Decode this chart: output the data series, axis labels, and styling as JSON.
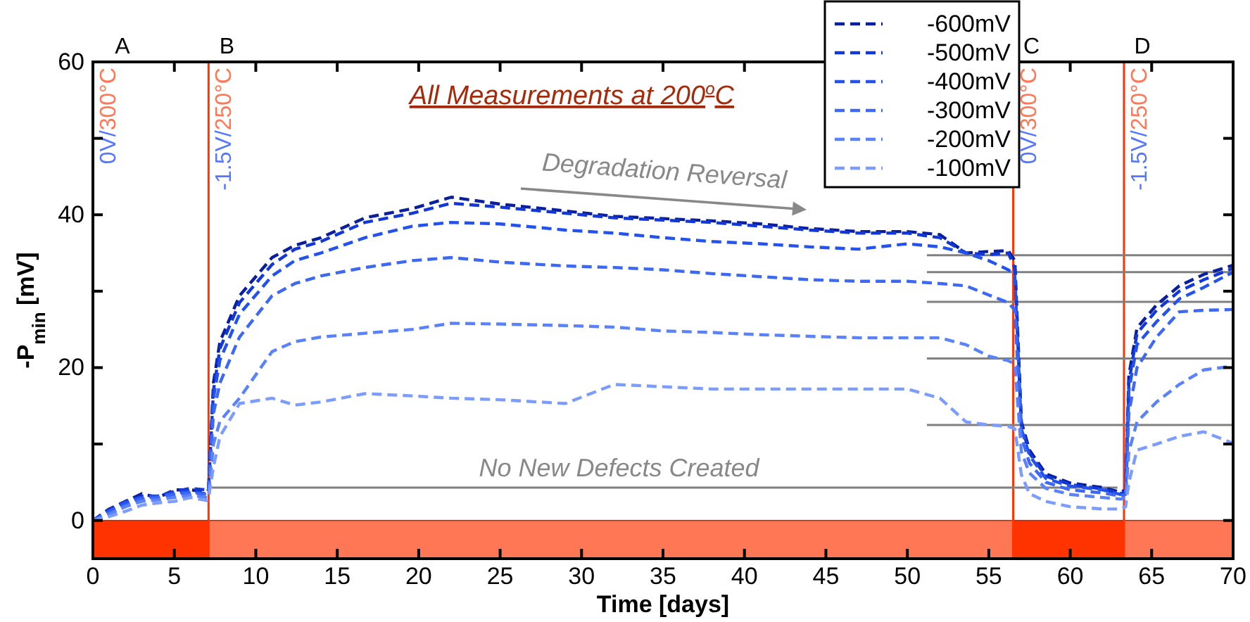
{
  "chart_data": {
    "type": "line",
    "xlabel": "Time  [days]",
    "ylabel": "-P$_{min}$  [mV]",
    "xlim": [
      0,
      70
    ],
    "ylim": [
      -5,
      60
    ],
    "xticks": [
      0,
      5,
      10,
      15,
      20,
      25,
      30,
      35,
      40,
      45,
      50,
      55,
      60,
      65,
      70
    ],
    "yticks": [
      0,
      {
        "value": 10,
        "label": null
      },
      20,
      {
        "value": 30,
        "label": null
      },
      40,
      {
        "value": 50,
        "label": null
      },
      60
    ],
    "x": [
      0,
      1,
      2,
      3,
      4,
      5,
      6,
      7,
      7.1,
      7.4,
      7.8,
      9,
      11,
      12.4,
      14,
      16.7,
      19.6,
      22,
      25,
      29,
      32,
      35,
      38,
      41,
      44,
      47,
      50,
      52,
      53.6,
      55,
      56.2,
      56.6,
      57,
      57.5,
      58.5,
      60,
      62,
      63.1,
      63.4,
      63.6,
      64.1,
      65.3,
      66.7,
      68.2,
      70
    ],
    "line_style": "dashed",
    "legend": "top right",
    "grid": false,
    "series": [
      {
        "name": "-600mV",
        "color": "#0a1f9e",
        "values": [
          0,
          1.5,
          2.5,
          3.5,
          3,
          4,
          4,
          3.8,
          4,
          18,
          23.4,
          29.4,
          34.4,
          36,
          37,
          39.6,
          40.8,
          42.3,
          41.4,
          40.5,
          39.8,
          39.5,
          39.2,
          38.8,
          38.2,
          37.8,
          37.8,
          37.4,
          35,
          35.2,
          35.3,
          34,
          12.9,
          9.2,
          6.1,
          4.9,
          4.3,
          3.7,
          4,
          19,
          25.2,
          28.2,
          30.7,
          32.2,
          33.4
        ]
      },
      {
        "name": "-500mV",
        "color": "#1238d8",
        "values": [
          0,
          1.2,
          2.3,
          3.2,
          3.2,
          3.8,
          4.2,
          4,
          4.2,
          17,
          22.5,
          28.5,
          33.5,
          35.5,
          36.5,
          39,
          40.2,
          41.5,
          41,
          40.2,
          39.6,
          39.3,
          39,
          38.5,
          38,
          37.6,
          37.6,
          37,
          35,
          34.8,
          35,
          33,
          12.5,
          8.8,
          5.8,
          4.7,
          4.1,
          3.5,
          3.8,
          18,
          24.5,
          27.5,
          30,
          31.5,
          33
        ]
      },
      {
        "name": "-400mV",
        "color": "#2452ee",
        "values": [
          0,
          1.3,
          2.4,
          3,
          3.2,
          3.6,
          3.8,
          3.5,
          3.8,
          16,
          21,
          27,
          32,
          34,
          35,
          37,
          38.5,
          39,
          38.8,
          38,
          37.6,
          37,
          36.5,
          36.2,
          35.8,
          35.5,
          36.2,
          35.8,
          35,
          34,
          32.8,
          32,
          12,
          8.5,
          5.5,
          4.5,
          4,
          3.4,
          3.6,
          17,
          23,
          26,
          29,
          30.5,
          32.5
        ]
      },
      {
        "name": "-300mV",
        "color": "#3d68f5",
        "values": [
          0,
          1,
          2,
          2.8,
          3,
          3.4,
          3.6,
          3.4,
          3.6,
          14,
          18,
          24,
          29.4,
          31,
          32,
          33.1,
          34,
          34.4,
          33.8,
          33.3,
          33.1,
          32.8,
          32.3,
          31.9,
          31.5,
          31.3,
          31.3,
          31,
          30.7,
          29.5,
          28.5,
          27.5,
          11,
          7.5,
          5,
          4,
          3.6,
          3.2,
          3.4,
          14,
          20,
          24,
          27.3,
          27.5,
          27.6
        ]
      },
      {
        "name": "-200mV",
        "color": "#5a82fb",
        "values": [
          0,
          0.8,
          1.8,
          2.5,
          2.7,
          3,
          3.3,
          3,
          3.2,
          10,
          13,
          16,
          22.1,
          23.4,
          24,
          24.5,
          25,
          25.8,
          25.7,
          25.5,
          25.3,
          24.8,
          24.6,
          24.3,
          24.1,
          23.9,
          23.9,
          23.9,
          23,
          21.5,
          20.9,
          20.5,
          9,
          6.2,
          4.2,
          3.4,
          3,
          2.8,
          3,
          9,
          12.9,
          15.5,
          17.8,
          19.7,
          20.2
        ]
      },
      {
        "name": "-100mV",
        "color": "#7d9cff",
        "values": [
          0,
          0.5,
          1.2,
          2,
          2.3,
          2.5,
          3,
          2.6,
          3,
          7,
          11,
          15.3,
          16,
          15.1,
          15.5,
          16.6,
          16.3,
          16,
          15.8,
          15.3,
          17.8,
          17.5,
          17.2,
          17.2,
          17.2,
          17.2,
          17.2,
          16,
          12.9,
          12.5,
          12.3,
          12,
          6,
          3.5,
          2.5,
          1.8,
          1.5,
          1.5,
          1.8,
          5,
          9.2,
          10,
          11,
          11.6,
          10.1
        ]
      },
      {
        "color": "#808080",
        "line_style": "solid",
        "x": [
          7.3,
          62.9
        ],
        "values": [
          4.3,
          4.3
        ]
      },
      {
        "color": "#808080",
        "line_style": "solid",
        "x": [
          51.2,
          70
        ],
        "values": [
          34.7,
          34.7
        ]
      },
      {
        "color": "#808080",
        "line_style": "solid",
        "x": [
          51.2,
          70
        ],
        "values": [
          32.5,
          32.5
        ]
      },
      {
        "color": "#808080",
        "line_style": "solid",
        "x": [
          51.2,
          70
        ],
        "values": [
          28.6,
          28.6
        ]
      },
      {
        "color": "#808080",
        "line_style": "solid",
        "x": [
          51.2,
          70
        ],
        "values": [
          21.2,
          21.2
        ]
      },
      {
        "color": "#808080",
        "line_style": "solid",
        "x": [
          51.2,
          70
        ],
        "values": [
          12.5,
          12.5
        ]
      }
    ],
    "bands": [
      {
        "axis": "x",
        "from": 0,
        "to": 7.1,
        "color": "#ff3300"
      },
      {
        "axis": "x",
        "from": 7.1,
        "to": 56.5,
        "color": "#ff7755"
      },
      {
        "axis": "x",
        "from": 56.5,
        "to": 63.3,
        "color": "#ff3300"
      },
      {
        "axis": "x",
        "from": 63.3,
        "to": 70,
        "color": "#ff7755"
      }
    ],
    "ref_lines": [
      {
        "axis": "x",
        "value": 7.1,
        "label": "-1.5V/250°C",
        "color": "#ff3300"
      },
      {
        "axis": "x",
        "value": 56.5,
        "label": "0V/300°C",
        "color": "#ff3300"
      },
      {
        "axis": "x",
        "value": 63.3,
        "label": "-1.5V/250°C",
        "color": "#ff3300"
      }
    ],
    "annotations": [
      "All Measurements at 200$^{o}$C",
      "0V/300°C",
      "Degradation Reversal",
      "A",
      "B",
      "C",
      "D",
      {
        "text": "No New Defects Created",
        "x": 32.3,
        "y": 4.3
      }
    ]
  }
}
